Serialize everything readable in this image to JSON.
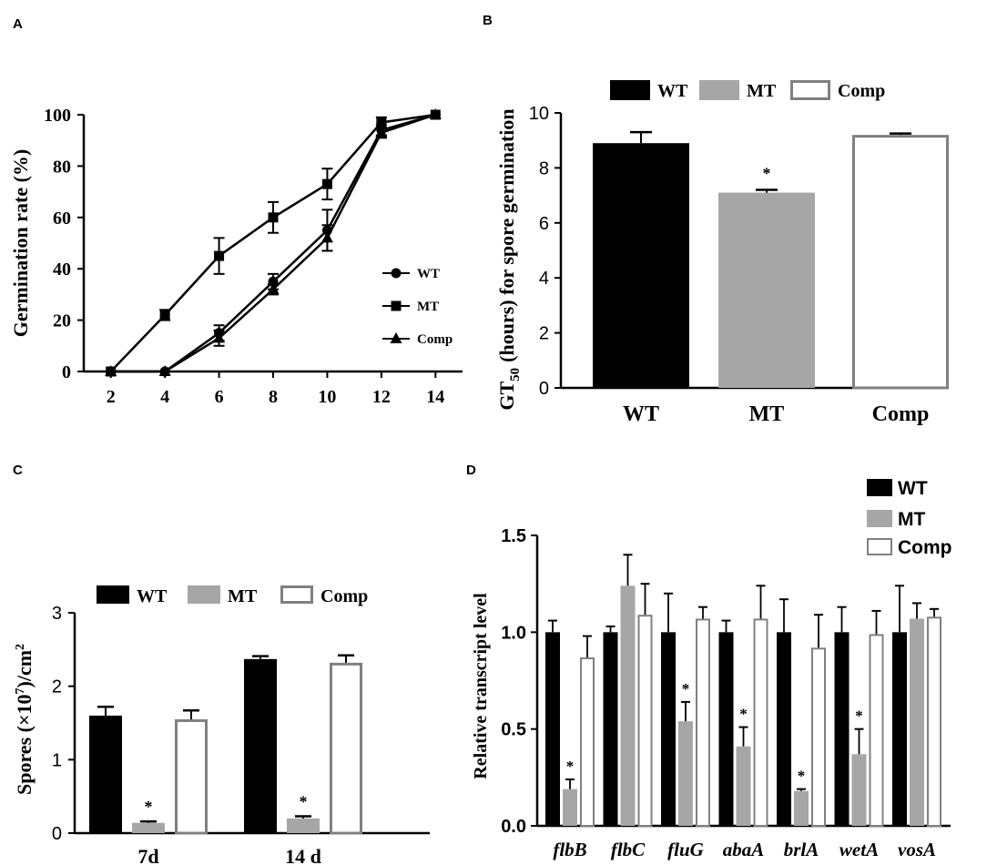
{
  "colors": {
    "wt": "#000000",
    "mt": "#a6a6a6",
    "comp": "#ffffff",
    "comp_edge": "#808080"
  },
  "chart_data": [
    {
      "panel": "A",
      "type": "line",
      "xlabel": "",
      "ylabel": "Germination rate (%)",
      "x": [
        2,
        4,
        6,
        8,
        10,
        12,
        14
      ],
      "xticks": [
        "2",
        "4",
        "6",
        "8",
        "10",
        "12",
        "14"
      ],
      "yticks": [
        "0",
        "20",
        "40",
        "60",
        "80",
        "100"
      ],
      "xlim": [
        1,
        15
      ],
      "ylim": [
        0,
        100
      ],
      "legend_position": "bottom-right",
      "series": [
        {
          "name": "WT",
          "marker": "circle",
          "values": [
            0,
            0,
            15,
            35,
            55,
            94,
            100
          ],
          "errors": [
            0,
            0,
            3,
            3,
            8,
            2,
            0
          ]
        },
        {
          "name": "MT",
          "marker": "square",
          "values": [
            0,
            22,
            45,
            60,
            73,
            97,
            100
          ],
          "errors": [
            0,
            2,
            7,
            6,
            6,
            2,
            0
          ]
        },
        {
          "name": "Comp",
          "marker": "triangle",
          "values": [
            0,
            0,
            13,
            32,
            52,
            93,
            100
          ],
          "errors": [
            0,
            0,
            3,
            2,
            5,
            2,
            0
          ]
        }
      ]
    },
    {
      "panel": "B",
      "type": "bar",
      "ylabel_main": "GT",
      "ylabel_sub": "50",
      "ylabel_rest": "(hours) for spore germination",
      "categories": [
        "WT",
        "MT",
        "Comp"
      ],
      "values": [
        8.9,
        7.1,
        9.2
      ],
      "errors": [
        0.4,
        0.1,
        0.05
      ],
      "significant": [
        "",
        "*",
        ""
      ],
      "ylim": [
        0,
        10
      ],
      "yticks": [
        "0",
        "2",
        "4",
        "6",
        "8",
        "10"
      ],
      "legend": [
        "WT",
        "MT",
        "Comp"
      ],
      "legend_position": "top"
    },
    {
      "panel": "C",
      "type": "bar",
      "ylabel_pre": "Spores (×10",
      "ylabel_sup": "7",
      "ylabel_post": ")/cm",
      "ylabel_sup2": "2",
      "categories": [
        "7d",
        "14 d"
      ],
      "series": [
        {
          "name": "WT",
          "values": [
            1.6,
            2.37
          ],
          "errors": [
            0.12,
            0.04
          ]
        },
        {
          "name": "MT",
          "values": [
            0.14,
            0.2
          ],
          "errors": [
            0.02,
            0.03
          ]
        },
        {
          "name": "Comp",
          "values": [
            1.55,
            2.32
          ],
          "errors": [
            0.12,
            0.1
          ]
        }
      ],
      "significant": [
        "*",
        "*"
      ],
      "ylim": [
        0,
        3
      ],
      "yticks": [
        "0",
        "1",
        "2",
        "3"
      ],
      "legend": [
        "WT",
        "MT",
        "Comp"
      ],
      "legend_position": "top"
    },
    {
      "panel": "D",
      "type": "bar",
      "ylabel": "Relative transcript level",
      "categories": [
        "flbB",
        "flbC",
        "fluG",
        "abaA",
        "brlA",
        "wetA",
        "vosA"
      ],
      "series": [
        {
          "name": "WT",
          "values": [
            1.0,
            1.0,
            1.0,
            1.0,
            1.0,
            1.0,
            1.0
          ],
          "errors": [
            0.06,
            0.03,
            0.2,
            0.06,
            0.17,
            0.13,
            0.24
          ]
        },
        {
          "name": "MT",
          "values": [
            0.19,
            1.24,
            0.54,
            0.41,
            0.18,
            0.37,
            1.07
          ],
          "errors": [
            0.05,
            0.16,
            0.1,
            0.1,
            0.01,
            0.13,
            0.08
          ]
        },
        {
          "name": "Comp",
          "values": [
            0.87,
            1.09,
            1.07,
            1.07,
            0.92,
            0.99,
            1.08
          ],
          "errors": [
            0.11,
            0.16,
            0.06,
            0.17,
            0.17,
            0.12,
            0.04
          ]
        }
      ],
      "significant": [
        "*",
        "",
        "*",
        "*",
        "*",
        "*",
        ""
      ],
      "ylim": [
        0,
        1.5
      ],
      "yticks": [
        "0.0",
        "0.5",
        "1.0",
        "1.5"
      ],
      "legend": [
        "WT",
        "MT",
        "Comp"
      ],
      "legend_position": "top-right"
    }
  ],
  "panel_letters": [
    "A",
    "B",
    "C",
    "D"
  ]
}
